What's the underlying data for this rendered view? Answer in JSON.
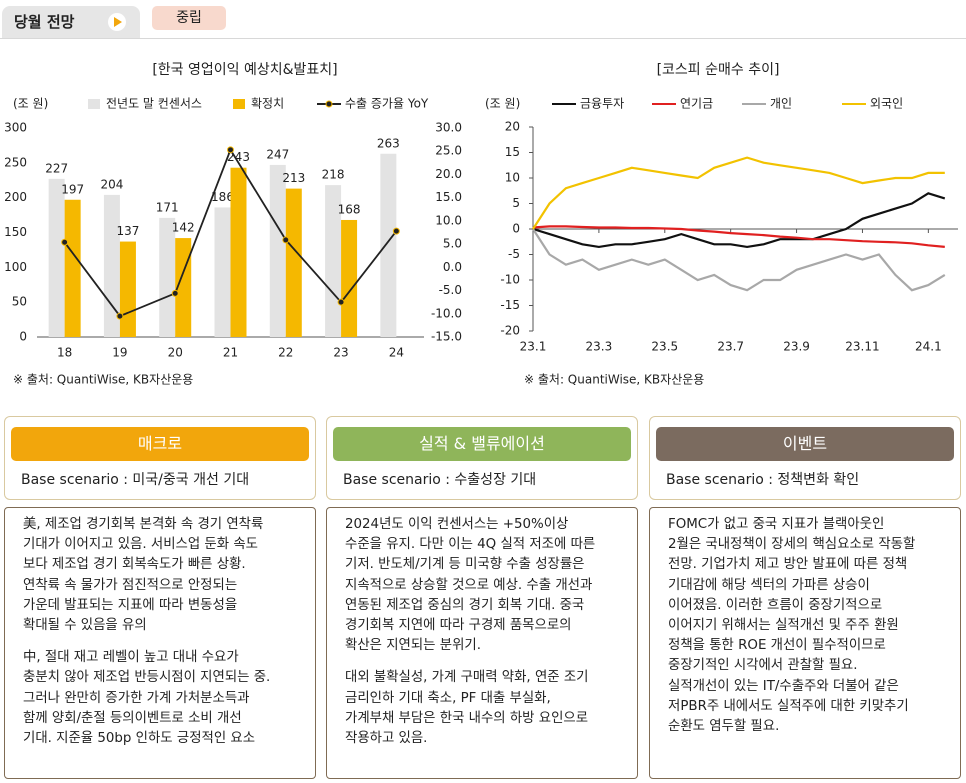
{
  "header": {
    "tab": "당월 전망",
    "stance": "중립"
  },
  "chart_data": [
    {
      "type": "bar",
      "title": "[한국 영업이익 예상치&발표치]",
      "y_label": "(조 원)",
      "source": "※ 출처: QuantiWise, KB자산운용",
      "categories": [
        "18",
        "19",
        "20",
        "21",
        "22",
        "23",
        "24"
      ],
      "series": [
        {
          "name": "전년도 말 컨센서스",
          "color": "#e3e3e3",
          "values": [
            227,
            204,
            171,
            186,
            247,
            218,
            263
          ]
        },
        {
          "name": "확정치",
          "color": "#f5b800",
          "values": [
            197,
            137,
            142,
            243,
            213,
            168,
            null
          ]
        },
        {
          "name": "수출 증가율 YoY",
          "type": "line",
          "axis": "y2",
          "marker": true,
          "color": "#222222",
          "values": [
            5.4,
            -10.5,
            -5.6,
            25.3,
            5.9,
            -7.5,
            7.8
          ]
        }
      ],
      "ylim": [
        0,
        300
      ],
      "yticks": [
        0,
        50,
        100,
        150,
        200,
        250,
        300
      ],
      "y2lim": [
        -15,
        30
      ],
      "y2ticks": [
        {
          "value": 30,
          "label": "30.0"
        },
        {
          "value": 25,
          "label": "25.0"
        },
        {
          "value": 20,
          "label": "20.0"
        },
        {
          "value": 15,
          "label": "15.0"
        },
        {
          "value": 10,
          "label": "10.0"
        },
        {
          "value": 5,
          "label": "5.0"
        },
        {
          "value": 0,
          "label": "0.0"
        },
        {
          "value": -5,
          "label": "-5.0"
        },
        {
          "value": -10,
          "label": "-10.0"
        },
        {
          "value": -15,
          "label": "-15.0"
        }
      ],
      "data_labels": true
    },
    {
      "type": "line",
      "title": "[코스피 순매수 추이]",
      "y_label": "(조 원)",
      "source": "※ 출처: QuantiWise, KB자산운용",
      "x": [
        0,
        0.5,
        1,
        1.5,
        2,
        2.5,
        3,
        3.5,
        4,
        4.5,
        5,
        5.5,
        6,
        6.5,
        7,
        7.5,
        8,
        8.5,
        9,
        9.5,
        10,
        10.5,
        11,
        11.5,
        12,
        12.5
      ],
      "series": [
        {
          "name": "금융투자",
          "color": "#111111",
          "values": [
            0,
            -1,
            -2,
            -3,
            -3.5,
            -3,
            -3,
            -2.5,
            -2,
            -1,
            -2,
            -3,
            -3,
            -3.5,
            -3,
            -2,
            -2,
            -2,
            -1,
            0,
            2,
            3,
            4,
            5,
            7,
            6
          ]
        },
        {
          "name": "연기금",
          "color": "#e02020",
          "values": [
            0.3,
            0.5,
            0.5,
            0.4,
            0.3,
            0.3,
            0.2,
            0.2,
            0.1,
            0,
            -0.3,
            -0.5,
            -0.8,
            -1,
            -1.2,
            -1.5,
            -1.7,
            -2,
            -2,
            -2.2,
            -2.4,
            -2.5,
            -2.6,
            -2.8,
            -3.2,
            -3.5
          ]
        },
        {
          "name": "개인",
          "color": "#a8a8a8",
          "values": [
            0,
            -5,
            -7,
            -6,
            -8,
            -7,
            -6,
            -7,
            -6,
            -8,
            -10,
            -9,
            -11,
            -12,
            -10,
            -10,
            -8,
            -7,
            -6,
            -5,
            -6,
            -5,
            -9,
            -12,
            -11,
            -9
          ]
        },
        {
          "name": "외국인",
          "color": "#f2c200",
          "values": [
            0,
            5,
            8,
            9,
            10,
            11,
            12,
            11.5,
            11,
            10.5,
            10,
            12,
            13,
            14,
            13,
            12.5,
            12,
            11.5,
            11,
            10,
            9,
            9.5,
            10,
            10,
            11,
            11
          ]
        }
      ],
      "xlim": [
        0,
        12.9
      ],
      "xticks": [
        {
          "value": 0,
          "label": "23.1"
        },
        {
          "value": 2,
          "label": "23.3"
        },
        {
          "value": 4,
          "label": "23.5"
        },
        {
          "value": 6,
          "label": "23.7"
        },
        {
          "value": 8,
          "label": "23.9"
        },
        {
          "value": 10,
          "label": "23.11"
        },
        {
          "value": 12,
          "label": "24.1"
        }
      ],
      "ylim": [
        -20,
        20
      ],
      "yticks": [
        20,
        15,
        10,
        5,
        0,
        -5,
        -10,
        -15,
        -20
      ]
    }
  ],
  "panels": [
    {
      "title": "매크로",
      "color": "#f2a60c",
      "scenario": "Base scenario : 미국/중국 개선 기대",
      "paragraphs": [
        [
          "美, 제조업 경기회복 본격화 속 경기 연착륙",
          "기대가 이어지고 있음. 서비스업 둔화 속도",
          "보다 제조업 경기 회복속도가 빠른 상황.",
          "연착륙 속 물가가 점진적으로 안정되는",
          "가운데 발표되는 지표에 따라 변동성을",
          "확대될 수 있음을 유의"
        ],
        [
          "中, 절대 재고 레벨이 높고 대내 수요가",
          "충분치 않아 제조업 반등시점이 지연되는 중.",
          "그러나 완만히 증가한 가계 가처분소득과",
          "함께 양회/춘절 등의이벤트로 소비 개선",
          "기대. 지준율 50bp 인하도 긍정적인 요소"
        ]
      ]
    },
    {
      "title": "실적 & 밸류에이션",
      "color": "#8fb55a",
      "scenario": "Base scenario : 수출성장 기대",
      "paragraphs": [
        [
          "2024년도 이익 컨센서스는 +50%이상",
          "수준을 유지. 다만 이는 4Q 실적 저조에 따른",
          "기저. 반도체/기계 등 미국향 수출 성장률은",
          "지속적으로 상승할 것으로 예상. 수출 개선과",
          "연동된 제조업 중심의 경기 회복 기대.  중국",
          "경기회복 지연에 따라 구경제 품목으로의",
          "확산은 지연되는 분위기."
        ],
        [
          "대외 불확실성, 가계 구매력 약화, 연준 조기",
          "금리인하 기대 축소, PF 대출 부실화,",
          "가계부채 부담은 한국 내수의 하방 요인으로",
          "작용하고 있음."
        ]
      ]
    },
    {
      "title": "이벤트",
      "color": "#7b6b5f",
      "scenario": "Base scenario : 정책변화 확인",
      "paragraphs": [
        [
          "FOMC가 없고 중국 지표가 블랙아웃인",
          "2월은 국내정책이 장세의 핵심요소로 작동할",
          "전망. 기업가치 제고 방안 발표에 따른 정책",
          "기대감에 해당 섹터의 가파른 상승이",
          "이어졌음. 이러한 흐름이 중장기적으로",
          "이어지기 위해서는 실적개선 및 주주 환원",
          "정책을 통한 ROE 개선이 필수적이므로",
          "중장기적인 시각에서 관찰할 필요.",
          "실적개선이 있는 IT/수출주와 더불어 같은",
          "저PBR주 내에서도 실적주에 대한 키맞추기",
          "순환도 염두할 필요."
        ]
      ]
    }
  ]
}
